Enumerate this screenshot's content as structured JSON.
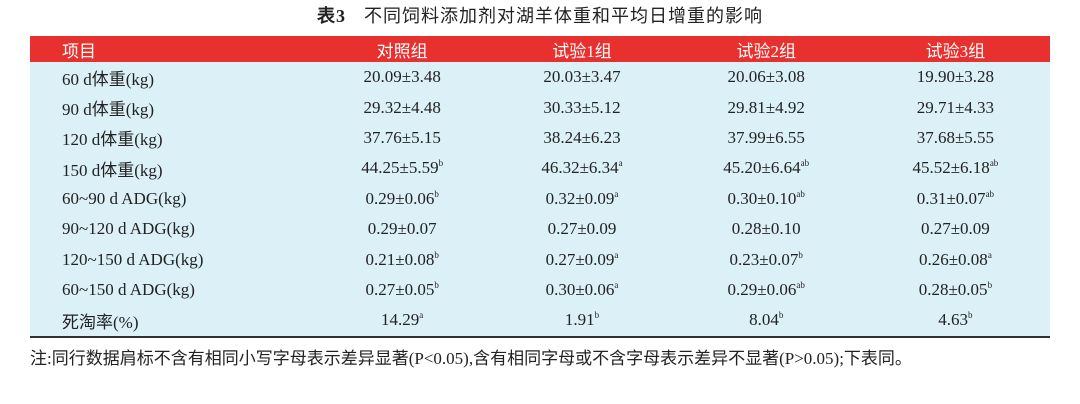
{
  "title": {
    "label": "表3",
    "text": "不同饲料添加剂对湖羊体重和平均日增重的影响"
  },
  "table": {
    "header": [
      "项目",
      "对照组",
      "试验1组",
      "试验2组",
      "试验3组"
    ],
    "rows": [
      [
        "60 d体重(kg)",
        "20.09±3.48",
        "20.03±3.47",
        "20.06±3.08",
        "19.90±3.28"
      ],
      [
        "90 d体重(kg)",
        "29.32±4.48",
        "30.33±5.12",
        "29.81±4.92",
        "29.71±4.33"
      ],
      [
        "120 d体重(kg)",
        "37.76±5.15",
        "38.24±6.23",
        "37.99±6.55",
        "37.68±5.55"
      ],
      [
        "150 d体重(kg)",
        {
          "text": "44.25±5.59",
          "sup": "b"
        },
        {
          "text": "46.32±6.34",
          "sup": "a"
        },
        {
          "text": "45.20±6.64",
          "sup": "ab"
        },
        {
          "text": "45.52±6.18",
          "sup": "ab"
        }
      ],
      [
        "60~90 d ADG(kg)",
        {
          "text": "0.29±0.06",
          "sup": "b"
        },
        {
          "text": "0.32±0.09",
          "sup": "a"
        },
        {
          "text": "0.30±0.10",
          "sup": "ab"
        },
        {
          "text": "0.31±0.07",
          "sup": "ab"
        }
      ],
      [
        "90~120 d ADG(kg)",
        "0.29±0.07",
        "0.27±0.09",
        "0.28±0.10",
        "0.27±0.09"
      ],
      [
        "120~150 d ADG(kg)",
        {
          "text": "0.21±0.08",
          "sup": "b"
        },
        {
          "text": "0.27±0.09",
          "sup": "a"
        },
        {
          "text": "0.23±0.07",
          "sup": "b"
        },
        {
          "text": "0.26±0.08",
          "sup": "a"
        }
      ],
      [
        "60~150 d ADG(kg)",
        {
          "text": "0.27±0.05",
          "sup": "b"
        },
        {
          "text": "0.30±0.06",
          "sup": "a"
        },
        {
          "text": "0.29±0.06",
          "sup": "ab"
        },
        {
          "text": "0.28±0.05",
          "sup": "b"
        }
      ],
      [
        "死淘率(%)",
        {
          "text": "14.29",
          "sup": "a"
        },
        {
          "text": "1.91",
          "sup": "b"
        },
        {
          "text": "8.04",
          "sup": "b"
        },
        {
          "text": "4.63",
          "sup": "b"
        }
      ]
    ]
  },
  "note": "注:同行数据肩标不含有相同小写字母表示差异显著(P<0.05),含有相同字母或不含字母表示差异不显著(P>0.05);下表同。"
}
